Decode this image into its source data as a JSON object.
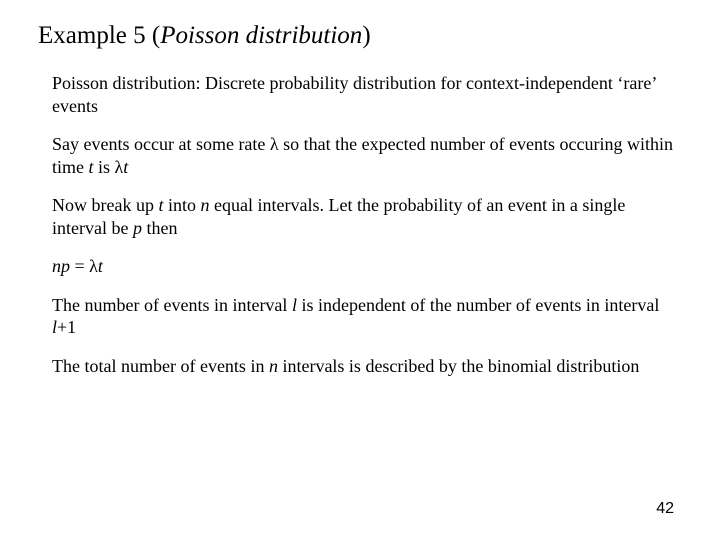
{
  "title": {
    "prefix": "Example 5 (",
    "italic_part": "Poisson distribution",
    "suffix": ")"
  },
  "paragraphs": {
    "p1": "Poisson distribution: Discrete probability distribution for context-independent ‘rare’ events",
    "p2": {
      "seg1": "Say events occur at some rate λ so that the expected number of events occuring within time ",
      "t": "t ",
      "seg2": " is λ",
      "t2": "t"
    },
    "p3": {
      "seg1": "Now break up ",
      "t": "t",
      "seg2": " into ",
      "n": "n",
      "seg3": " equal intervals. Let the probability of an event in a single interval be ",
      "p": "p ",
      "seg4": " then"
    },
    "p4": {
      "np": "np",
      "seg1": " = λ",
      "t": "t"
    },
    "p5": {
      "seg1": "The number of events in interval ",
      "l": "l",
      "seg2": " is independent of the number of events in interval ",
      "l2": "l",
      "seg3": "+1"
    },
    "p6": {
      "seg1": "The total number of events in ",
      "n": "n",
      "seg2": " intervals is described by the binomial distribution"
    }
  },
  "page_number": "42",
  "style": {
    "background_color": "#ffffff",
    "text_color": "#000000",
    "title_fontsize": 25,
    "body_fontsize": 18,
    "page_number_fontsize": 16,
    "font_family": "Times New Roman"
  }
}
